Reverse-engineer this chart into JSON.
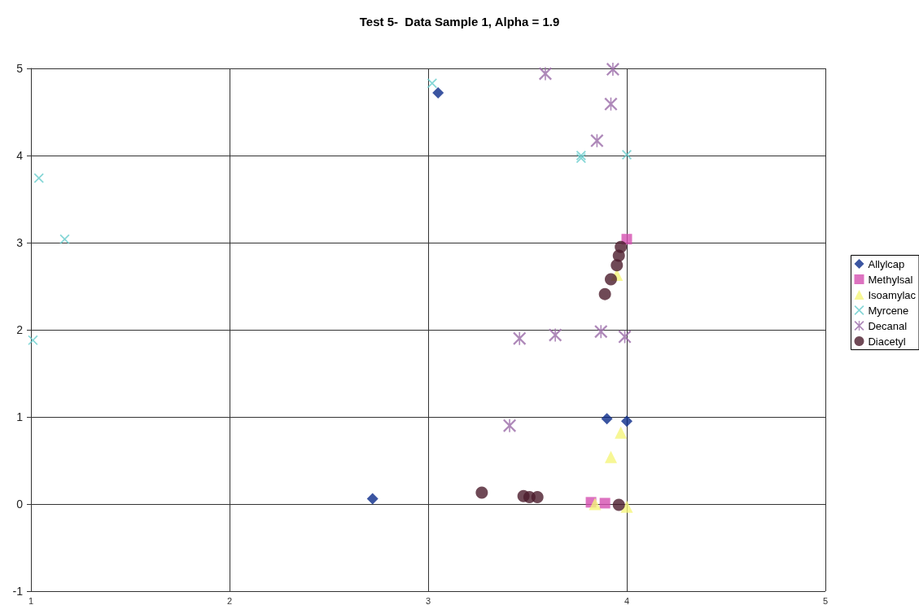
{
  "chart_data": {
    "type": "scatter",
    "title": "Test 5-  Data Sample 1, Alpha = 1.9",
    "xlim": [
      1,
      5
    ],
    "xticks": [
      1,
      2,
      3,
      4,
      5
    ],
    "ylim": [
      -1,
      5
    ],
    "yticks": [
      -1,
      0,
      1,
      2,
      3,
      4,
      5
    ],
    "grid": true,
    "legend": "right",
    "series": [
      {
        "name": "Allylcap",
        "color": "#0a2a8a",
        "marker": "diamond",
        "x": [
          2.72,
          3.05,
          3.9,
          4.0
        ],
        "values": [
          0.06,
          4.72,
          0.98,
          0.95
        ]
      },
      {
        "name": "Methylsal",
        "color": "#d44fb0",
        "marker": "square",
        "x": [
          3.82,
          3.89,
          4.0
        ],
        "values": [
          0.02,
          0.01,
          3.04
        ]
      },
      {
        "name": "Isoamylac",
        "color": "#f5f57a",
        "marker": "triangle",
        "x": [
          3.84,
          4.0,
          3.92,
          3.97,
          3.95
        ],
        "values": [
          0,
          -0.03,
          0.54,
          0.82,
          2.63
        ]
      },
      {
        "name": "Myrcene",
        "color": "#66cccc",
        "marker": "cross",
        "x": [
          1.04,
          1.17,
          1.01,
          3.02,
          3.77,
          3.77,
          4.0
        ],
        "values": [
          3.74,
          3.04,
          1.88,
          4.83,
          4.0,
          3.97,
          4.01
        ]
      },
      {
        "name": "Decanal",
        "color": "#9a6aa8",
        "marker": "star",
        "x": [
          3.59,
          3.93,
          3.92,
          3.85,
          3.46,
          3.64,
          3.87,
          3.99,
          3.41
        ],
        "values": [
          4.94,
          4.99,
          4.59,
          4.17,
          1.9,
          1.94,
          1.98,
          1.92,
          0.9
        ]
      },
      {
        "name": "Diacetyl",
        "color": "#4b1c2c",
        "marker": "circle",
        "x": [
          3.27,
          3.48,
          3.51,
          3.55,
          3.96,
          3.89,
          3.92,
          3.95,
          3.96,
          3.97
        ],
        "values": [
          0.13,
          0.09,
          0.08,
          0.08,
          -0.01,
          2.41,
          2.58,
          2.74,
          2.85,
          2.95
        ]
      }
    ]
  }
}
